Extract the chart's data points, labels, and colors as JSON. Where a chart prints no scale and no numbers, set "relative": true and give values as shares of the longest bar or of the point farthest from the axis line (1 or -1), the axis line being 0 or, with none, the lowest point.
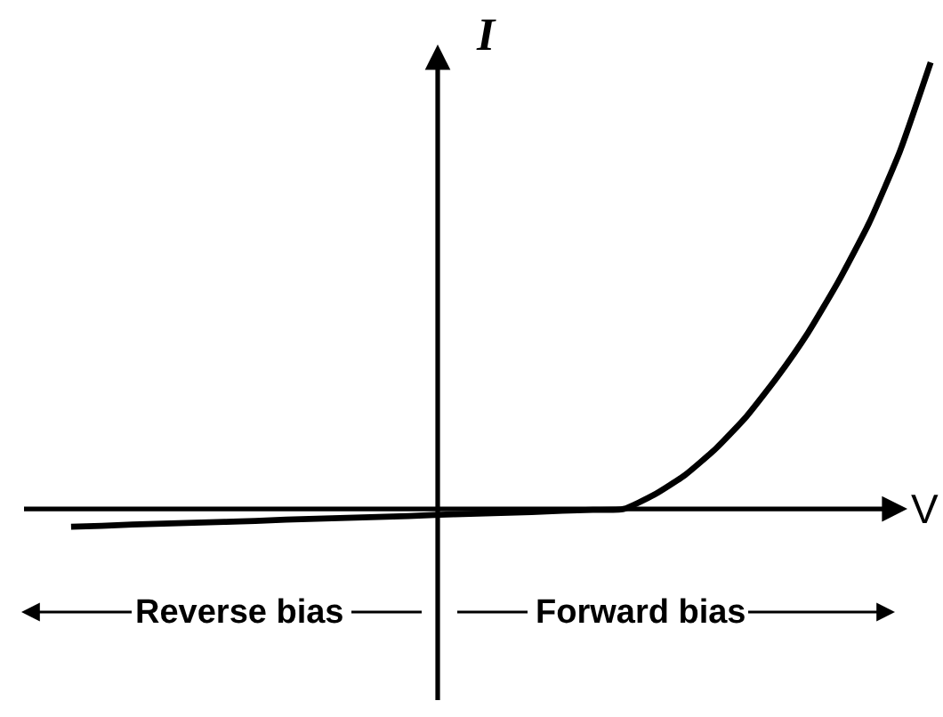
{
  "chart_data": {
    "type": "line",
    "xlabel": "V",
    "ylabel": "I",
    "relative": true,
    "categories": [
      null,
      null,
      null,
      null,
      null,
      null,
      null,
      null,
      null,
      null,
      null,
      null,
      null,
      null,
      null,
      null,
      null,
      null,
      null,
      null,
      null,
      null,
      null,
      null,
      null,
      null,
      null,
      null,
      null
    ],
    "series": [
      {
        "color": "#000000",
        "values": [
          -0.04,
          -0.038,
          -0.035,
          -0.033,
          -0.031,
          -0.029,
          -0.027,
          -0.024,
          -0.022,
          -0.02,
          -0.018,
          -0.016,
          -0.013,
          -0.011,
          -0.009,
          -0.007,
          -0.004,
          -0.002,
          0,
          0.032,
          0.076,
          0.135,
          0.207,
          0.295,
          0.394,
          0.51,
          0.641,
          0.801,
          1.0
        ]
      }
    ],
    "annotations": [
      "Reverse bias",
      "Forward bias"
    ],
    "marker": "none",
    "line_style": "solid"
  }
}
